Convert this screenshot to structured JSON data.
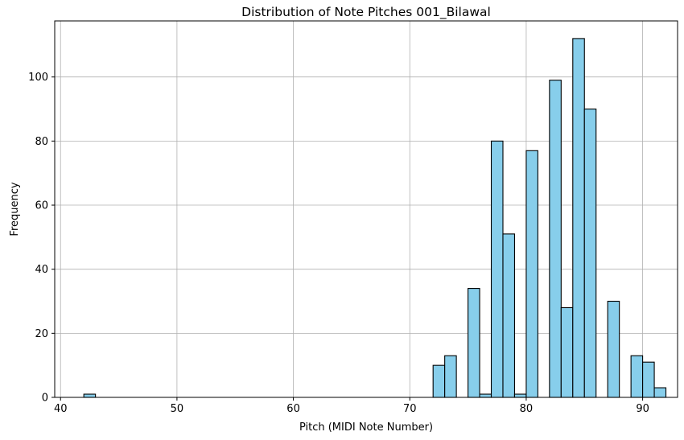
{
  "chart_data": {
    "type": "bar",
    "title": "Distribution of Note Pitches 001_Bilawal",
    "xlabel": "Pitch (MIDI Note Number)",
    "ylabel": "Frequency",
    "xlim": [
      39.5,
      93.0
    ],
    "ylim": [
      0,
      117.5
    ],
    "xticks": [
      40,
      50,
      60,
      70,
      80,
      90
    ],
    "yticks": [
      0,
      20,
      40,
      60,
      80,
      100
    ],
    "grid": true,
    "bar_color": "#87CEEB",
    "edge_color": "#000000",
    "bins": [
      {
        "x0": 42.0,
        "x1": 43.0,
        "value": 1
      },
      {
        "x0": 72.0,
        "x1": 73.0,
        "value": 10
      },
      {
        "x0": 73.0,
        "x1": 74.0,
        "value": 13
      },
      {
        "x0": 75.0,
        "x1": 76.0,
        "value": 34
      },
      {
        "x0": 76.0,
        "x1": 77.0,
        "value": 1
      },
      {
        "x0": 77.0,
        "x1": 78.0,
        "value": 80
      },
      {
        "x0": 78.0,
        "x1": 79.0,
        "value": 51
      },
      {
        "x0": 79.0,
        "x1": 80.0,
        "value": 1
      },
      {
        "x0": 80.0,
        "x1": 81.0,
        "value": 77
      },
      {
        "x0": 82.0,
        "x1": 83.0,
        "value": 99
      },
      {
        "x0": 83.0,
        "x1": 84.0,
        "value": 28
      },
      {
        "x0": 84.0,
        "x1": 85.0,
        "value": 112
      },
      {
        "x0": 85.0,
        "x1": 86.0,
        "value": 90
      },
      {
        "x0": 87.0,
        "x1": 88.0,
        "value": 30
      },
      {
        "x0": 89.0,
        "x1": 90.0,
        "value": 13
      },
      {
        "x0": 90.0,
        "x1": 91.0,
        "value": 11
      },
      {
        "x0": 91.0,
        "x1": 92.0,
        "value": 3
      }
    ]
  }
}
